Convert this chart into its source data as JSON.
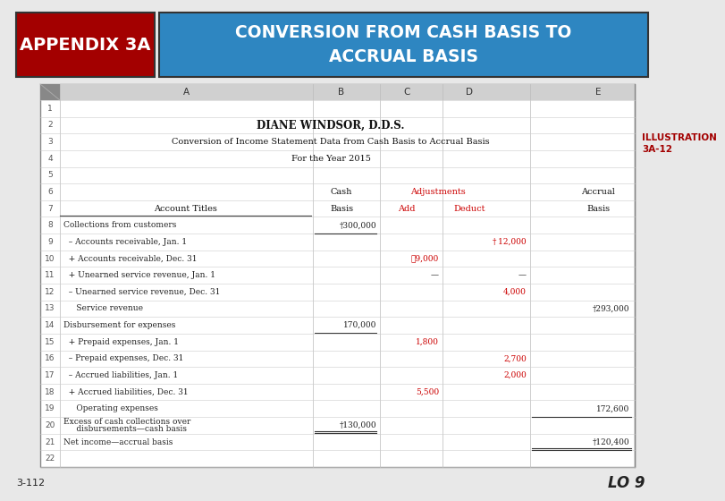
{
  "header_left_text": "APPENDIX 3A",
  "header_left_bg": "#A30000",
  "header_right_text": "CONVERSION FROM CASH BASIS TO\nACCRUAL BASIS",
  "header_right_bg": "#2E86C1",
  "header_text_color": "#FFFFFF",
  "illustration_text": "ILLUSTRATION\n3A-12",
  "illustration_color": "#A30000",
  "footer_left": "3-112",
  "footer_right": "LO 9",
  "title1": "DIANE WINDSOR, D.D.S.",
  "title2": "Conversion of Income Statement Data from Cash Basis to Accrual Basis",
  "title3": "For the Year 2015",
  "adjustments_color": "#CC0000",
  "rows": [
    {
      "num": "8",
      "label": "Collections from customers",
      "B": "†300,000",
      "C": "",
      "D": "",
      "E": ""
    },
    {
      "num": "9",
      "label": "  – Accounts receivable, Jan. 1",
      "B": "",
      "C": "",
      "D": "† 12,000",
      "E": ""
    },
    {
      "num": "10",
      "label": "  + Accounts receivable, Dec. 31",
      "B": "",
      "C": "‧9,000",
      "D": "",
      "E": ""
    },
    {
      "num": "11",
      "label": "  + Unearned service revenue, Jan. 1",
      "B": "",
      "C": "—",
      "D": "—",
      "E": ""
    },
    {
      "num": "12",
      "label": "  – Unearned service revenue, Dec. 31",
      "B": "",
      "C": "",
      "D": "4,000",
      "E": ""
    },
    {
      "num": "13",
      "label": "     Service revenue",
      "B": "",
      "C": "",
      "D": "",
      "E": "†293,000"
    },
    {
      "num": "14",
      "label": "Disbursement for expenses",
      "B": "170,000",
      "C": "",
      "D": "",
      "E": ""
    },
    {
      "num": "15",
      "label": "  + Prepaid expenses, Jan. 1",
      "B": "",
      "C": "1,800",
      "D": "",
      "E": ""
    },
    {
      "num": "16",
      "label": "  – Prepaid expenses, Dec. 31",
      "B": "",
      "C": "",
      "D": "2,700",
      "E": ""
    },
    {
      "num": "17",
      "label": "  – Accrued liabilities, Jan. 1",
      "B": "",
      "C": "",
      "D": "2,000",
      "E": ""
    },
    {
      "num": "18",
      "label": "  + Accrued liabilities, Dec. 31",
      "B": "",
      "C": "5,500",
      "D": "",
      "E": ""
    },
    {
      "num": "19",
      "label": "     Operating expenses",
      "B": "",
      "C": "",
      "D": "",
      "E": "172,600"
    },
    {
      "num": "20",
      "label": "Excess of cash collections over\n     disbursements—cash basis",
      "B": "†130,000",
      "C": "",
      "D": "",
      "E": ""
    },
    {
      "num": "21",
      "label": "Net income—accrual basis",
      "B": "",
      "C": "",
      "D": "",
      "E": "†120,400"
    },
    {
      "num": "22",
      "label": "",
      "B": "",
      "C": "",
      "D": "",
      "E": ""
    }
  ],
  "red_c_rows": [
    "10",
    "15",
    "18"
  ],
  "red_d_rows": [
    "9",
    "12",
    "16",
    "17"
  ],
  "bg_color": "#E8E8E8",
  "table_bg": "#FFFFFF",
  "grid_color": "#CCCCCC",
  "row_num_color": "#555555",
  "label_color": "#222222",
  "value_color_black": "#222222",
  "value_color_red": "#CC0000"
}
